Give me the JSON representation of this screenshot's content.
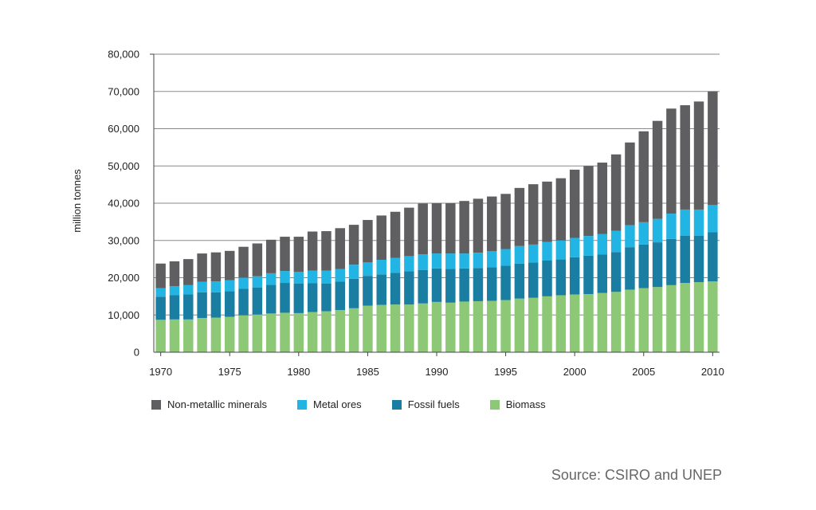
{
  "chart_data": {
    "type": "bar",
    "stacked": true,
    "title": "",
    "xlabel": "",
    "ylabel": "million tonnes",
    "ylim": [
      0,
      80000
    ],
    "yticks": [
      0,
      10000,
      20000,
      30000,
      40000,
      50000,
      60000,
      70000,
      80000
    ],
    "ytick_labels": [
      "0",
      "10,000",
      "20,000",
      "30,000",
      "40,000",
      "50,000",
      "60,000",
      "70,000",
      "80,000"
    ],
    "xtick_labels": [
      "1970",
      "1975",
      "1980",
      "1985",
      "1990",
      "1995",
      "2000",
      "2005",
      "2010"
    ],
    "categories": [
      1970,
      1971,
      1972,
      1973,
      1974,
      1975,
      1976,
      1977,
      1978,
      1979,
      1980,
      1981,
      1982,
      1983,
      1984,
      1985,
      1986,
      1987,
      1988,
      1989,
      1990,
      1991,
      1992,
      1993,
      1994,
      1995,
      1996,
      1997,
      1998,
      1999,
      2000,
      2001,
      2002,
      2003,
      2004,
      2005,
      2006,
      2007,
      2008,
      2009,
      2010
    ],
    "series": [
      {
        "name": "Biomass",
        "color": "#8dc877",
        "values": [
          8700,
          8800,
          8800,
          9200,
          9300,
          9500,
          9900,
          10100,
          10400,
          10600,
          10500,
          10800,
          11000,
          11300,
          11800,
          12500,
          12700,
          12800,
          12800,
          13100,
          13500,
          13300,
          13600,
          13700,
          13800,
          14000,
          14400,
          14600,
          15000,
          15300,
          15500,
          15600,
          15900,
          16200,
          16800,
          17200,
          17500,
          18000,
          18600,
          18800,
          19000
        ]
      },
      {
        "name": "Fossil fuels",
        "color": "#197ea2",
        "values": [
          6200,
          6500,
          6700,
          6900,
          6800,
          6900,
          7100,
          7300,
          7700,
          8000,
          7900,
          7700,
          7400,
          7700,
          7900,
          8000,
          8200,
          8500,
          8900,
          9000,
          9000,
          9100,
          8900,
          8900,
          9000,
          9200,
          9400,
          9500,
          9600,
          9600,
          10000,
          10300,
          10300,
          10700,
          11400,
          11700,
          12000,
          12400,
          12700,
          12500,
          13200
        ]
      },
      {
        "name": "Metal ores",
        "color": "#22b5e3",
        "values": [
          2300,
          2400,
          2500,
          2800,
          2900,
          2900,
          3000,
          3000,
          3100,
          3200,
          3200,
          3400,
          3500,
          3300,
          3800,
          3600,
          3900,
          4000,
          4100,
          4200,
          4000,
          4100,
          4000,
          4100,
          4300,
          4500,
          4700,
          4800,
          5000,
          5100,
          5200,
          5300,
          5500,
          5700,
          5900,
          6000,
          6300,
          6800,
          7000,
          7000,
          7300
        ]
      },
      {
        "name": "Non-metallic minerals",
        "color": "#5f5f61",
        "values": [
          6600,
          6700,
          7000,
          7600,
          7800,
          7900,
          8300,
          8800,
          9000,
          9200,
          9400,
          10500,
          10600,
          11000,
          10700,
          11400,
          11900,
          12400,
          13000,
          13600,
          13500,
          13500,
          14100,
          14500,
          14700,
          14800,
          15600,
          16200,
          16200,
          16700,
          18300,
          18800,
          19200,
          20500,
          22200,
          24400,
          26300,
          28200,
          28000,
          29000,
          30500
        ]
      }
    ],
    "legend_order": [
      "Non-metallic minerals",
      "Metal ores",
      "Fossil fuels",
      "Biomass"
    ],
    "grid": true
  },
  "legend": [
    {
      "label": "Non-metallic minerals",
      "color": "#5f5f61"
    },
    {
      "label": "Metal ores",
      "color": "#22b5e3"
    },
    {
      "label": "Fossil fuels",
      "color": "#197ea2"
    },
    {
      "label": "Biomass",
      "color": "#8dc877"
    }
  ],
  "source": "Source: CSIRO and UNEP"
}
